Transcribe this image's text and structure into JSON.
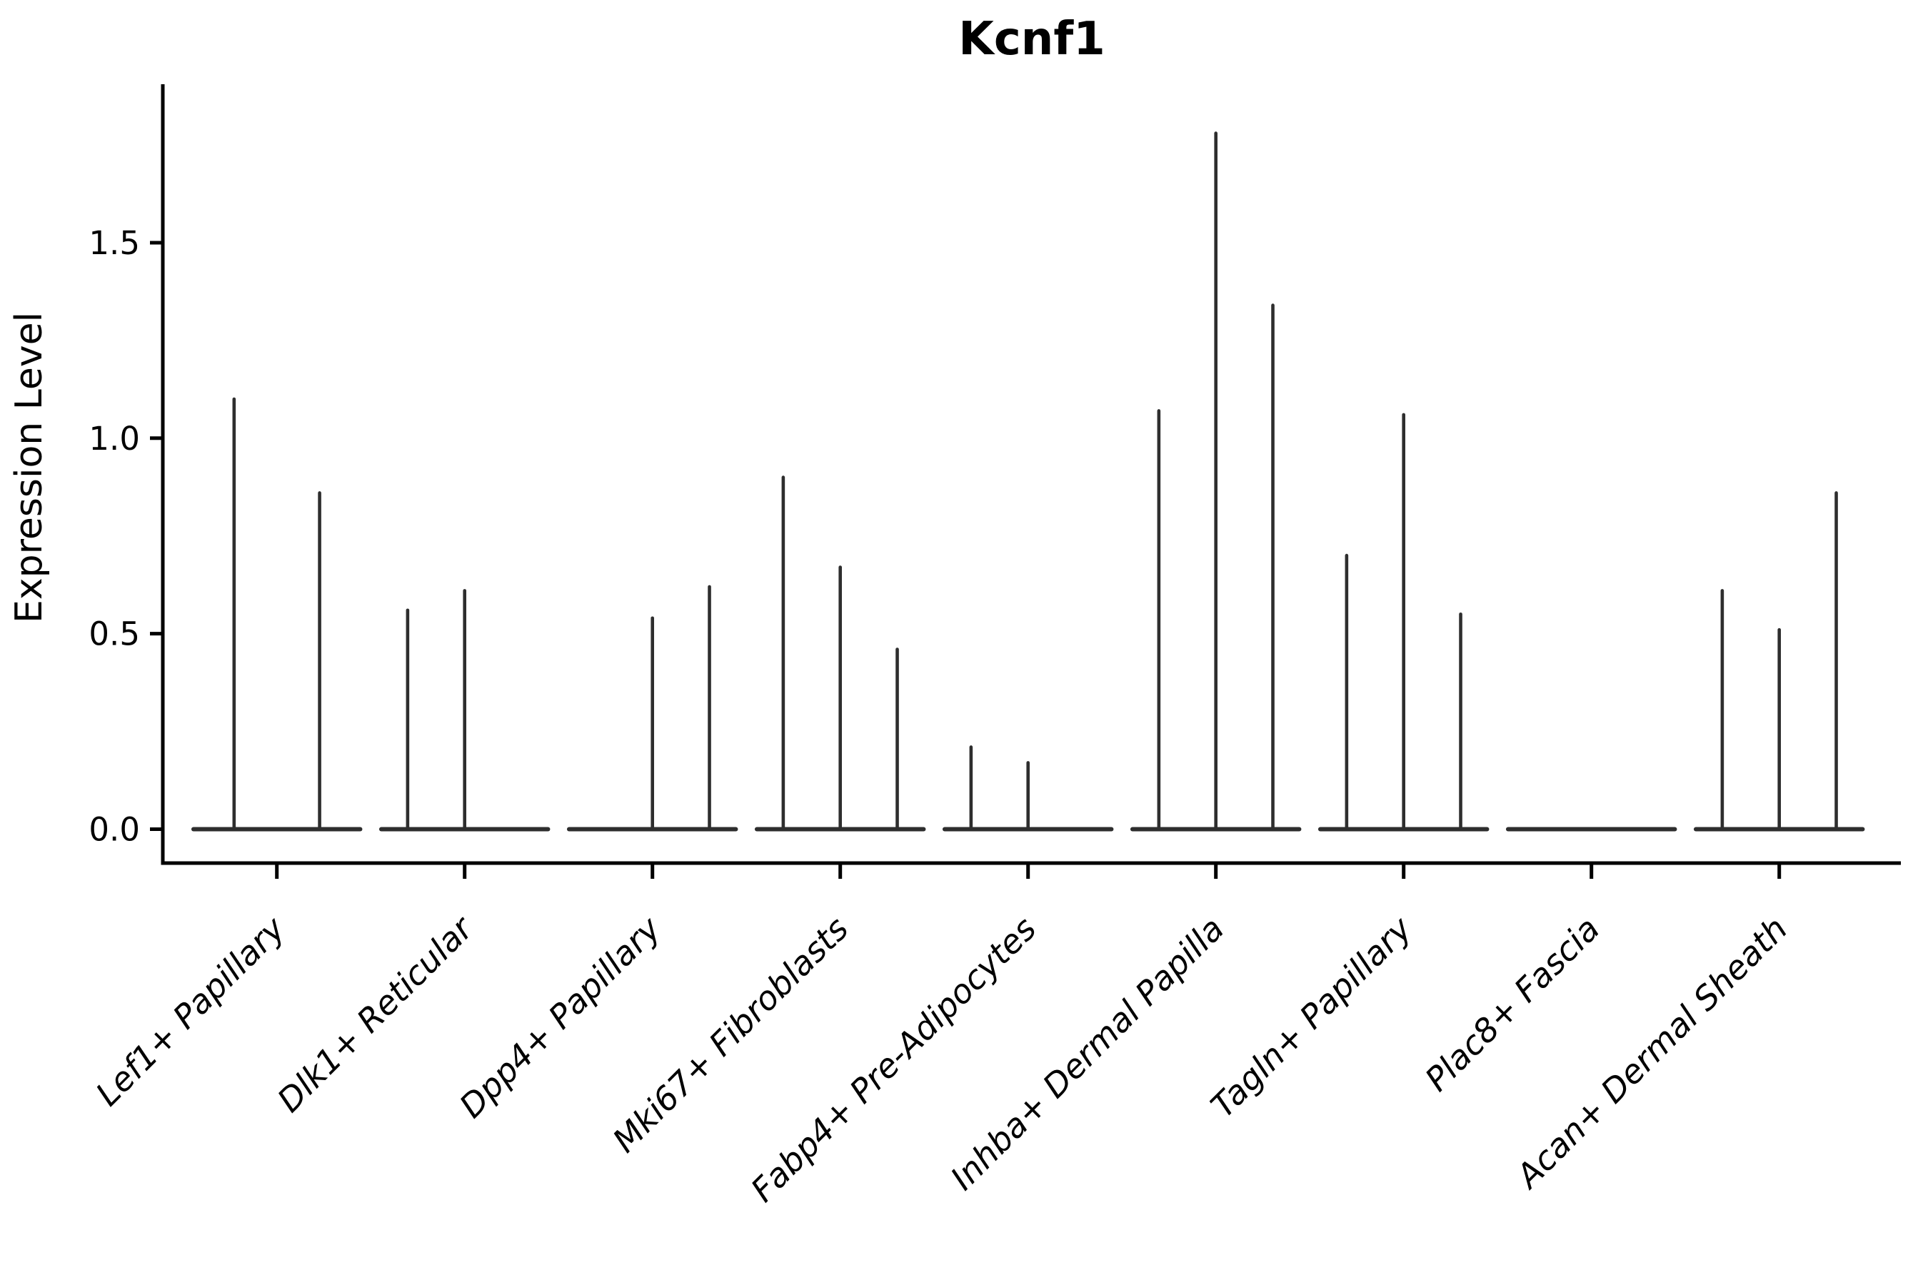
{
  "chart_data": {
    "type": "violin",
    "title": "Kcnf1",
    "xlabel": "",
    "ylabel": "Expression Level",
    "ytick_labels": [
      "0.0",
      "0.5",
      "1.0",
      "1.5"
    ],
    "ytick_values": [
      0.0,
      0.5,
      1.0,
      1.5
    ],
    "ylim": [
      -0.095,
      1.9
    ],
    "grid": false,
    "legend": "none",
    "description": "Single-cell expression violin plot; each category holds adjacent thin violins (flat zero-baseline plus a narrow vertical density spike whose top is the max expression). Zero values mean a flat violin with no spike.",
    "categories": [
      {
        "label": "Lef1+ Papillary",
        "violin_spike_tops": [
          1.1,
          0.86
        ]
      },
      {
        "label": "Dlk1+ Reticular",
        "violin_spike_tops": [
          0.56,
          0.61,
          0
        ]
      },
      {
        "label": "Dpp4+ Papillary",
        "violin_spike_tops": [
          0,
          0.54,
          0.62
        ]
      },
      {
        "label": "Mki67+ Fibroblasts",
        "violin_spike_tops": [
          0.9,
          0.67,
          0.46
        ]
      },
      {
        "label": "Fabp4+ Pre-Adipocytes",
        "violin_spike_tops": [
          0.21,
          0.17,
          0
        ]
      },
      {
        "label": "Inhba+ Dermal Papilla",
        "violin_spike_tops": [
          1.07,
          1.78,
          1.34
        ]
      },
      {
        "label": "Tagln+ Papillary",
        "violin_spike_tops": [
          0.7,
          1.06,
          0.55
        ]
      },
      {
        "label": "Plac8+ Fascia",
        "violin_spike_tops": [
          0,
          0,
          0
        ]
      },
      {
        "label": "Acan+ Dermal Sheath",
        "violin_spike_tops": [
          0.61,
          0.51,
          0.86
        ]
      }
    ],
    "colors": {
      "violin": "#2e2e2e",
      "axis": "#000000",
      "text": "#000000",
      "background": "#ffffff"
    }
  }
}
